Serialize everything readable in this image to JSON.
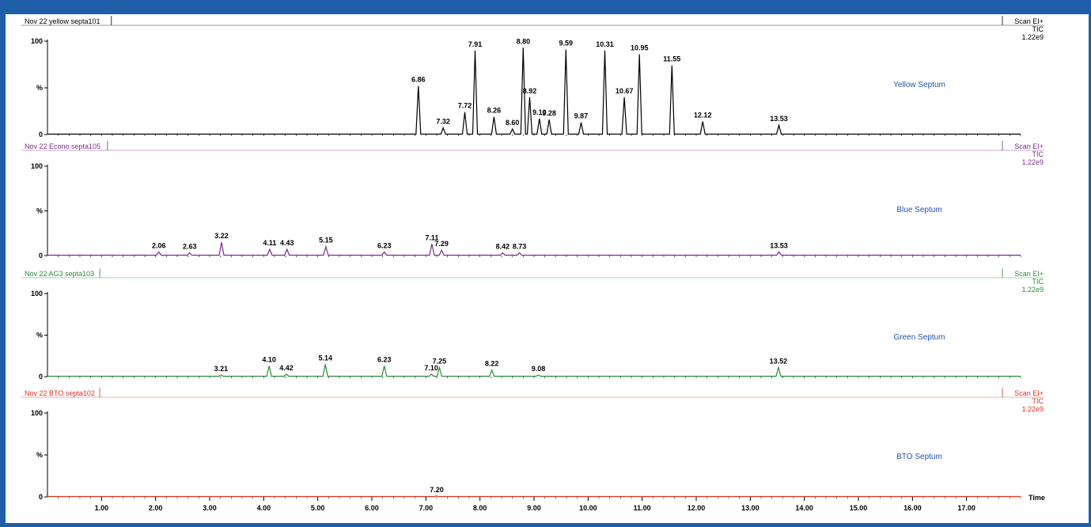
{
  "x_axis_label": "Time",
  "chart_data": [
    {
      "type": "line",
      "title": "Nov 22 yellow septa101",
      "scan": "Scan EI+",
      "mode": "TIC",
      "intensity": "1.22e9",
      "annotation": "Yellow Septum",
      "color": "#000000",
      "annotation_color": "#2255a8",
      "y_ticks": [
        "100",
        "%",
        "0"
      ],
      "xlim": [
        0.0,
        18.0
      ],
      "ylim": [
        0,
        100
      ],
      "peaks": [
        {
          "x": 6.86,
          "y": 52,
          "label": "6.86"
        },
        {
          "x": 7.32,
          "y": 7,
          "label": "7.32"
        },
        {
          "x": 7.72,
          "y": 24,
          "label": "7.72"
        },
        {
          "x": 7.91,
          "y": 90,
          "label": "7.91"
        },
        {
          "x": 8.26,
          "y": 19,
          "label": "8.26"
        },
        {
          "x": 8.6,
          "y": 6,
          "label": "8.60"
        },
        {
          "x": 8.8,
          "y": 93,
          "label": "8.80"
        },
        {
          "x": 8.92,
          "y": 40,
          "label": "8.92"
        },
        {
          "x": 9.1,
          "y": 17,
          "label": "9.10"
        },
        {
          "x": 9.28,
          "y": 16,
          "label": "9.28"
        },
        {
          "x": 9.59,
          "y": 91,
          "label": "9.59"
        },
        {
          "x": 9.87,
          "y": 13,
          "label": "9.87"
        },
        {
          "x": 10.31,
          "y": 90,
          "label": "10.31"
        },
        {
          "x": 10.67,
          "y": 40,
          "label": "10.67"
        },
        {
          "x": 10.95,
          "y": 86,
          "label": "10.95"
        },
        {
          "x": 11.55,
          "y": 74,
          "label": "11.55"
        },
        {
          "x": 12.12,
          "y": 14,
          "label": "12.12"
        },
        {
          "x": 13.53,
          "y": 10,
          "label": "13.53"
        }
      ]
    },
    {
      "type": "line",
      "title": "Nov 22 Econo septa105",
      "scan": "Scan EI+",
      "mode": "TIC",
      "intensity": "1.22e9",
      "annotation": "Blue Septum",
      "color": "#7a2d8c",
      "annotation_color": "#2255a8",
      "y_ticks": [
        "100",
        "%",
        "0"
      ],
      "xlim": [
        0.0,
        18.0
      ],
      "ylim": [
        0,
        100
      ],
      "peaks": [
        {
          "x": 2.06,
          "y": 4,
          "label": "2.06"
        },
        {
          "x": 2.63,
          "y": 3,
          "label": "2.63"
        },
        {
          "x": 3.22,
          "y": 15,
          "label": "3.22"
        },
        {
          "x": 4.11,
          "y": 7,
          "label": "4.11"
        },
        {
          "x": 4.43,
          "y": 7,
          "label": "4.43"
        },
        {
          "x": 5.15,
          "y": 10,
          "label": "5.15"
        },
        {
          "x": 6.23,
          "y": 4,
          "label": "6.23"
        },
        {
          "x": 7.11,
          "y": 13,
          "label": "7.11"
        },
        {
          "x": 7.29,
          "y": 6,
          "label": "7.29"
        },
        {
          "x": 8.42,
          "y": 3,
          "label": "8.42"
        },
        {
          "x": 8.73,
          "y": 3,
          "label": "8.73"
        },
        {
          "x": 13.53,
          "y": 4,
          "label": "13.53"
        }
      ]
    },
    {
      "type": "line",
      "title": "Nov 22 AG3 septa103",
      "scan": "Scan EI+",
      "mode": "TIC",
      "intensity": "1.22e9",
      "annotation": "Green Septum",
      "color": "#2e8b3a",
      "annotation_color": "#2255a8",
      "y_ticks": [
        "100",
        "%",
        "0"
      ],
      "xlim": [
        0.0,
        18.0
      ],
      "ylim": [
        0,
        100
      ],
      "peaks": [
        {
          "x": 3.21,
          "y": 2,
          "label": "3.21"
        },
        {
          "x": 4.1,
          "y": 13,
          "label": "4.10"
        },
        {
          "x": 4.42,
          "y": 3,
          "label": "4.42"
        },
        {
          "x": 5.14,
          "y": 15,
          "label": "5.14"
        },
        {
          "x": 6.23,
          "y": 13,
          "label": "6.23"
        },
        {
          "x": 7.1,
          "y": 3,
          "label": "7.10"
        },
        {
          "x": 7.25,
          "y": 11,
          "label": "7.25"
        },
        {
          "x": 8.22,
          "y": 8,
          "label": "8.22"
        },
        {
          "x": 9.08,
          "y": 2,
          "label": "9.08"
        },
        {
          "x": 13.52,
          "y": 11,
          "label": "13.52"
        }
      ]
    },
    {
      "type": "line",
      "title": "Nov 22 BTO septa102",
      "scan": "Scan EI+",
      "mode": "TIC",
      "intensity": "1.22e9",
      "annotation": "BTO Septum",
      "color": "#e0301e",
      "annotation_color": "#2255a8",
      "y_ticks": [
        "100",
        "%",
        "0"
      ],
      "xlim": [
        0.0,
        18.0
      ],
      "ylim": [
        0,
        100
      ],
      "peaks": [
        {
          "x": 7.2,
          "y": 1,
          "label": "7.20"
        }
      ]
    }
  ],
  "x_ticks": [
    "1.00",
    "2.00",
    "3.00",
    "4.00",
    "5.00",
    "6.00",
    "7.00",
    "8.00",
    "9.00",
    "10.00",
    "11.00",
    "12.00",
    "13.00",
    "14.00",
    "15.00",
    "16.00",
    "17.00"
  ]
}
